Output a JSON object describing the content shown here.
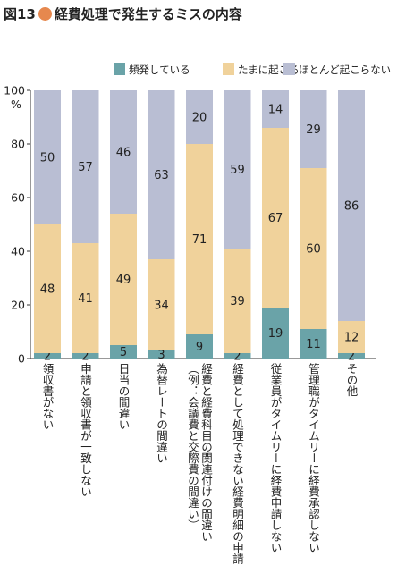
{
  "title": {
    "figure_number": "図13",
    "text": "経費処理で発生するミスの内容"
  },
  "chart_data": {
    "type": "bar",
    "stacked": true,
    "percent_unit": "%",
    "ylim": [
      0,
      100
    ],
    "yticks": [
      0,
      20,
      40,
      60,
      80,
      100
    ],
    "grid": false,
    "legend_position": "top-right",
    "categories": [
      "領収書がない",
      "申請と領収書が一致しない",
      "日当の間違い",
      "為替レートの間違い",
      "経費と経費科目の関連付けの間違い（例：会議費と交際費の間違い）",
      "経費として処理できない経費明細の申請",
      "従業員がタイムリーに経費申請しない",
      "管理職がタイムリーに経費承認しない",
      "その他"
    ],
    "series": [
      {
        "name": "頻発している",
        "color": "#6aa3a8",
        "values": [
          2,
          2,
          5,
          3,
          9,
          2,
          19,
          11,
          2
        ]
      },
      {
        "name": "たまに起こる",
        "color": "#f0d29b",
        "values": [
          48,
          41,
          49,
          34,
          71,
          39,
          67,
          60,
          12
        ]
      },
      {
        "name": "ほとんど起こらない",
        "color": "#b9bed3",
        "values": [
          50,
          57,
          46,
          63,
          20,
          59,
          14,
          29,
          86
        ]
      }
    ]
  }
}
